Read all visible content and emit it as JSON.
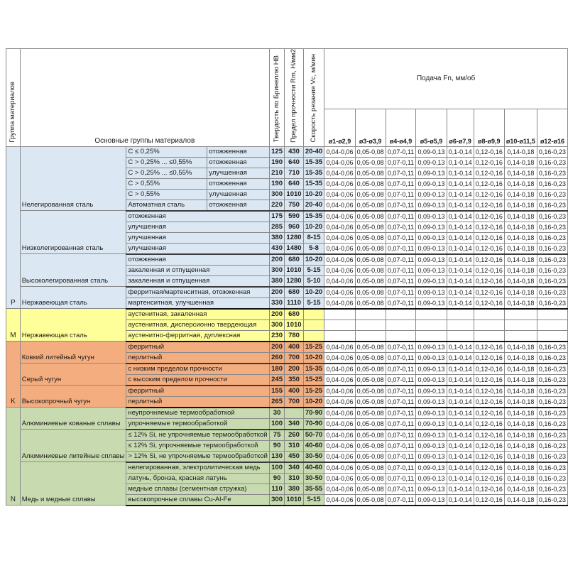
{
  "header": {
    "group_col": "Группа материалов",
    "main_groups": "Основные группы материалов",
    "hardness": "Твердость по Бринеллю HB",
    "strength": "Предел прочности Rm, Н/мм2",
    "speed": "Скорость резания Vc, м/мин",
    "feed": "Подача Fn, мм/об",
    "diameters": [
      "ø1-ø2,9",
      "ø3-ø3,9",
      "ø4-ø4,9",
      "ø5-ø5,9",
      "ø6-ø7,9",
      "ø8-ø9,9",
      "ø10-ø11,5",
      "ø12-ø16"
    ]
  },
  "feed_values": [
    "0,04-0,06",
    "0,05-0,08",
    "0,07-0,11",
    "0,09-0,13",
    "0,1-0,14",
    "0,12-0,16",
    "0,14-0,18",
    "0,16-0,23"
  ],
  "colors": {
    "blue": "#dbe7f2",
    "yellow": "#ffff99",
    "orange": "#f4ad7f",
    "green": "#c8dbb0"
  },
  "sections": [
    {
      "letter": "P",
      "color": "blue",
      "families": [
        {
          "name": "Нелегированная сталь",
          "rows": [
            {
              "c": "C ≤ 0,25%",
              "state": "отожженная",
              "hb": "125",
              "rm": "430",
              "vc": "20-40"
            },
            {
              "c": "C > 0,25% ... ≤0,55%",
              "state": "отожженная",
              "hb": "190",
              "rm": "640",
              "vc": "15-35"
            },
            {
              "c": "C > 0,25% ... ≤0,55%",
              "state": "улучшенная",
              "hb": "210",
              "rm": "710",
              "vc": "15-35"
            },
            {
              "c": "C > 0,55%",
              "state": "отожженная",
              "hb": "190",
              "rm": "640",
              "vc": "15-35"
            },
            {
              "c": "C > 0,55%",
              "state": "улучшенная",
              "hb": "300",
              "rm": "1010",
              "vc": "10-20"
            },
            {
              "c": "Автоматная сталь",
              "state": "отожженная",
              "hb": "220",
              "rm": "750",
              "vc": "20-40"
            }
          ]
        },
        {
          "name": "Низколегированная сталь",
          "rows": [
            {
              "desc": "отожженная",
              "hb": "175",
              "rm": "590",
              "vc": "15-35"
            },
            {
              "desc": "улучшенная",
              "hb": "285",
              "rm": "960",
              "vc": "10-20"
            },
            {
              "desc": "улучшенная",
              "hb": "380",
              "rm": "1280",
              "vc": "8-15"
            },
            {
              "desc": "улучшенная",
              "hb": "430",
              "rm": "1480",
              "vc": "5-8"
            }
          ]
        },
        {
          "name": "Высоколегированная сталь",
          "rows": [
            {
              "desc": "отожженная",
              "hb": "200",
              "rm": "680",
              "vc": "10-20"
            },
            {
              "desc": "закаленная и отпущенная",
              "hb": "300",
              "rm": "1010",
              "vc": "5-15"
            },
            {
              "desc": "закаленная и отпущенная",
              "hb": "380",
              "rm": "1280",
              "vc": "5-10"
            }
          ]
        },
        {
          "name": "Нержавеющая сталь",
          "rows": [
            {
              "desc": "ферритная/мартенситная, отожженная",
              "hb": "200",
              "rm": "680",
              "vc": "10-20"
            },
            {
              "desc": "мартенситная, улучшенная",
              "hb": "330",
              "rm": "1110",
              "vc": "5-15"
            }
          ]
        }
      ]
    },
    {
      "letter": "M",
      "color": "yellow",
      "families": [
        {
          "name": "Нержавеющая сталь",
          "rows": [
            {
              "desc": "аустенитная, закаленная",
              "hb": "200",
              "rm": "680",
              "vc": "",
              "feeds": false
            },
            {
              "desc": "аустенитная, дисперсионно твердеющая",
              "hb": "300",
              "rm": "1010",
              "vc": "",
              "feeds": false
            },
            {
              "desc": "аустенитно-ферритная, дуплексная",
              "hb": "230",
              "rm": "780",
              "vc": "",
              "feeds": false
            }
          ]
        }
      ]
    },
    {
      "letter": "K",
      "color": "orange",
      "families": [
        {
          "name": "Ковкий литейный чугун",
          "rows": [
            {
              "desc": "ферритный",
              "hb": "200",
              "rm": "400",
              "vc": "15-25"
            },
            {
              "desc": "перлитный",
              "hb": "260",
              "rm": "700",
              "vc": "10-20"
            }
          ]
        },
        {
          "name": "Серый чугун",
          "rows": [
            {
              "desc": "с низким пределом прочности",
              "hb": "180",
              "rm": "200",
              "vc": "15-35"
            },
            {
              "desc": "с высоким пределом прочности",
              "hb": "245",
              "rm": "350",
              "vc": "15-25"
            }
          ]
        },
        {
          "name": "Высокопрочный чугун",
          "rows": [
            {
              "desc": "ферритный",
              "hb": "155",
              "rm": "400",
              "vc": "15-25"
            },
            {
              "desc": "перлитный",
              "hb": "265",
              "rm": "700",
              "vc": "10-20"
            }
          ]
        }
      ]
    },
    {
      "letter": "N",
      "color": "green",
      "families": [
        {
          "name": "Алюминиевые кованые сплавы",
          "rows": [
            {
              "desc": "неупрочняемые термообработкой",
              "hb": "30",
              "rm": "",
              "vc": "70-90"
            },
            {
              "desc": "упрочняемые термообработкой",
              "hb": "100",
              "rm": "340",
              "vc": "70-90"
            }
          ]
        },
        {
          "name": "Алюминиевые литейные сплавы",
          "rows": [
            {
              "desc": "≤ 12% Si, не упрочняемые термообработкой",
              "hb": "75",
              "rm": "260",
              "vc": "50-70"
            },
            {
              "desc": "≤ 12% Si, упрочняемые термообработкой",
              "hb": "90",
              "rm": "310",
              "vc": "40-60"
            },
            {
              "desc": "> 12% Si, не упрочняемые термообработкой",
              "hb": "130",
              "rm": "450",
              "vc": "30-50"
            }
          ]
        },
        {
          "name": "Медь и медные сплавы",
          "rows": [
            {
              "desc": "нелегированная, электролитическая медь",
              "hb": "100",
              "rm": "340",
              "vc": "40-60"
            },
            {
              "desc": "латунь, бронза, красная латунь",
              "hb": "90",
              "rm": "310",
              "vc": "30-50"
            },
            {
              "desc": "медные сплавы (сегментная стружка)",
              "hb": "110",
              "rm": "380",
              "vc": "35-55"
            },
            {
              "desc": "высокопрочные сплавы Cu-Al-Fe",
              "hb": "300",
              "rm": "1010",
              "vc": "5-15"
            }
          ]
        }
      ]
    }
  ]
}
